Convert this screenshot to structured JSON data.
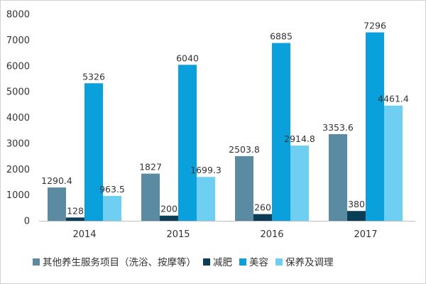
{
  "chart_data": {
    "type": "bar",
    "categories": [
      "2014",
      "2015",
      "2016",
      "2017"
    ],
    "series": [
      {
        "name": "其他养生服务项目（洗浴、按摩等）",
        "values": [
          1290.4,
          1827,
          2503.8,
          3353.6
        ],
        "labels": [
          "1290.4",
          "1827",
          "2503.8",
          "3353.6"
        ],
        "color": "#5b8ba3"
      },
      {
        "name": "减肥",
        "values": [
          128,
          200,
          260,
          380
        ],
        "labels": [
          "128",
          "200",
          "260",
          "380"
        ],
        "color": "#0c3d57"
      },
      {
        "name": "美容",
        "values": [
          5326,
          6040,
          6885,
          7296
        ],
        "labels": [
          "5326",
          "6040",
          "6885",
          "7296"
        ],
        "color": "#0aa0dc"
      },
      {
        "name": "保养及调理",
        "values": [
          963.5,
          1699.3,
          2914.8,
          4461.4
        ],
        "labels": [
          "963.5",
          "1699.3",
          "2914.8",
          "4461.4"
        ],
        "color": "#6ecff2"
      }
    ],
    "yticks": [
      "0",
      "1000",
      "2000",
      "3000",
      "4000",
      "5000",
      "6000",
      "7000",
      "8000"
    ],
    "ylim": [
      0,
      8000
    ],
    "title": "",
    "xlabel": "",
    "ylabel": "",
    "grid": false,
    "legend": "bottom"
  }
}
